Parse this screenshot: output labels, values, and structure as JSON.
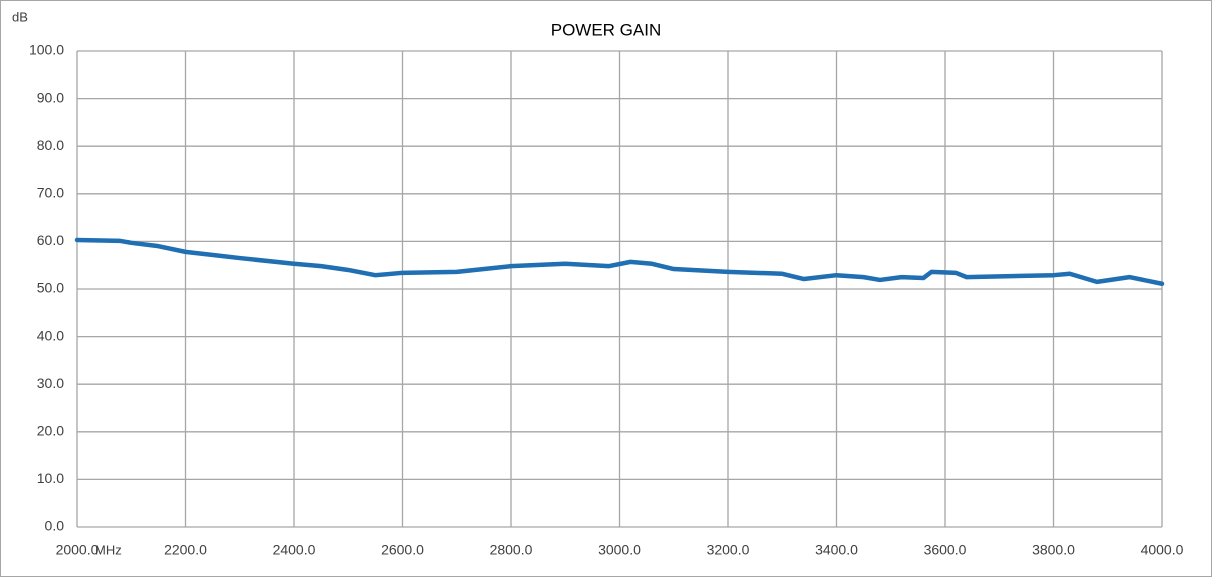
{
  "chart_data": {
    "type": "line",
    "title": "POWER GAIN",
    "ylabel": "dB",
    "xlabel": "MHz",
    "xlim": [
      2000,
      4000
    ],
    "ylim": [
      0,
      100
    ],
    "grid": true,
    "xticks": [
      {
        "value": 2000,
        "label": "2000.0"
      },
      {
        "value": 2200,
        "label": "2200.0"
      },
      {
        "value": 2400,
        "label": "2400.0"
      },
      {
        "value": 2600,
        "label": "2600.0"
      },
      {
        "value": 2800,
        "label": "2800.0"
      },
      {
        "value": 3000,
        "label": "3000.0"
      },
      {
        "value": 3200,
        "label": "3200.0"
      },
      {
        "value": 3400,
        "label": "3400.0"
      },
      {
        "value": 3600,
        "label": "3600.0"
      },
      {
        "value": 3800,
        "label": "3800.0"
      },
      {
        "value": 4000,
        "label": "4000.0"
      }
    ],
    "yticks": [
      {
        "value": 0,
        "label": "0.0"
      },
      {
        "value": 10,
        "label": "10.0"
      },
      {
        "value": 20,
        "label": "20.0"
      },
      {
        "value": 30,
        "label": "30.0"
      },
      {
        "value": 40,
        "label": "40.0"
      },
      {
        "value": 50,
        "label": "50.0"
      },
      {
        "value": 60,
        "label": "60.0"
      },
      {
        "value": 70,
        "label": "70.0"
      },
      {
        "value": 80,
        "label": "80.0"
      },
      {
        "value": 90,
        "label": "90.0"
      },
      {
        "value": 100,
        "label": "100.0"
      }
    ],
    "x": [
      2000,
      2080,
      2100,
      2150,
      2200,
      2300,
      2400,
      2450,
      2500,
      2550,
      2600,
      2700,
      2800,
      2900,
      2980,
      3020,
      3060,
      3100,
      3200,
      3300,
      3340,
      3400,
      3450,
      3480,
      3520,
      3560,
      3575,
      3620,
      3640,
      3800,
      3830,
      3880,
      3940,
      4000
    ],
    "series": [
      {
        "color": "#1f6fb2",
        "values": [
          60.3,
          60.1,
          59.7,
          59.0,
          57.8,
          56.5,
          55.3,
          54.8,
          54.0,
          52.9,
          53.4,
          53.6,
          54.8,
          55.3,
          54.8,
          55.7,
          55.3,
          54.2,
          53.6,
          53.2,
          52.1,
          52.9,
          52.5,
          51.9,
          52.5,
          52.3,
          53.6,
          53.4,
          52.5,
          52.9,
          53.2,
          51.5,
          52.5,
          51.1
        ]
      }
    ]
  }
}
